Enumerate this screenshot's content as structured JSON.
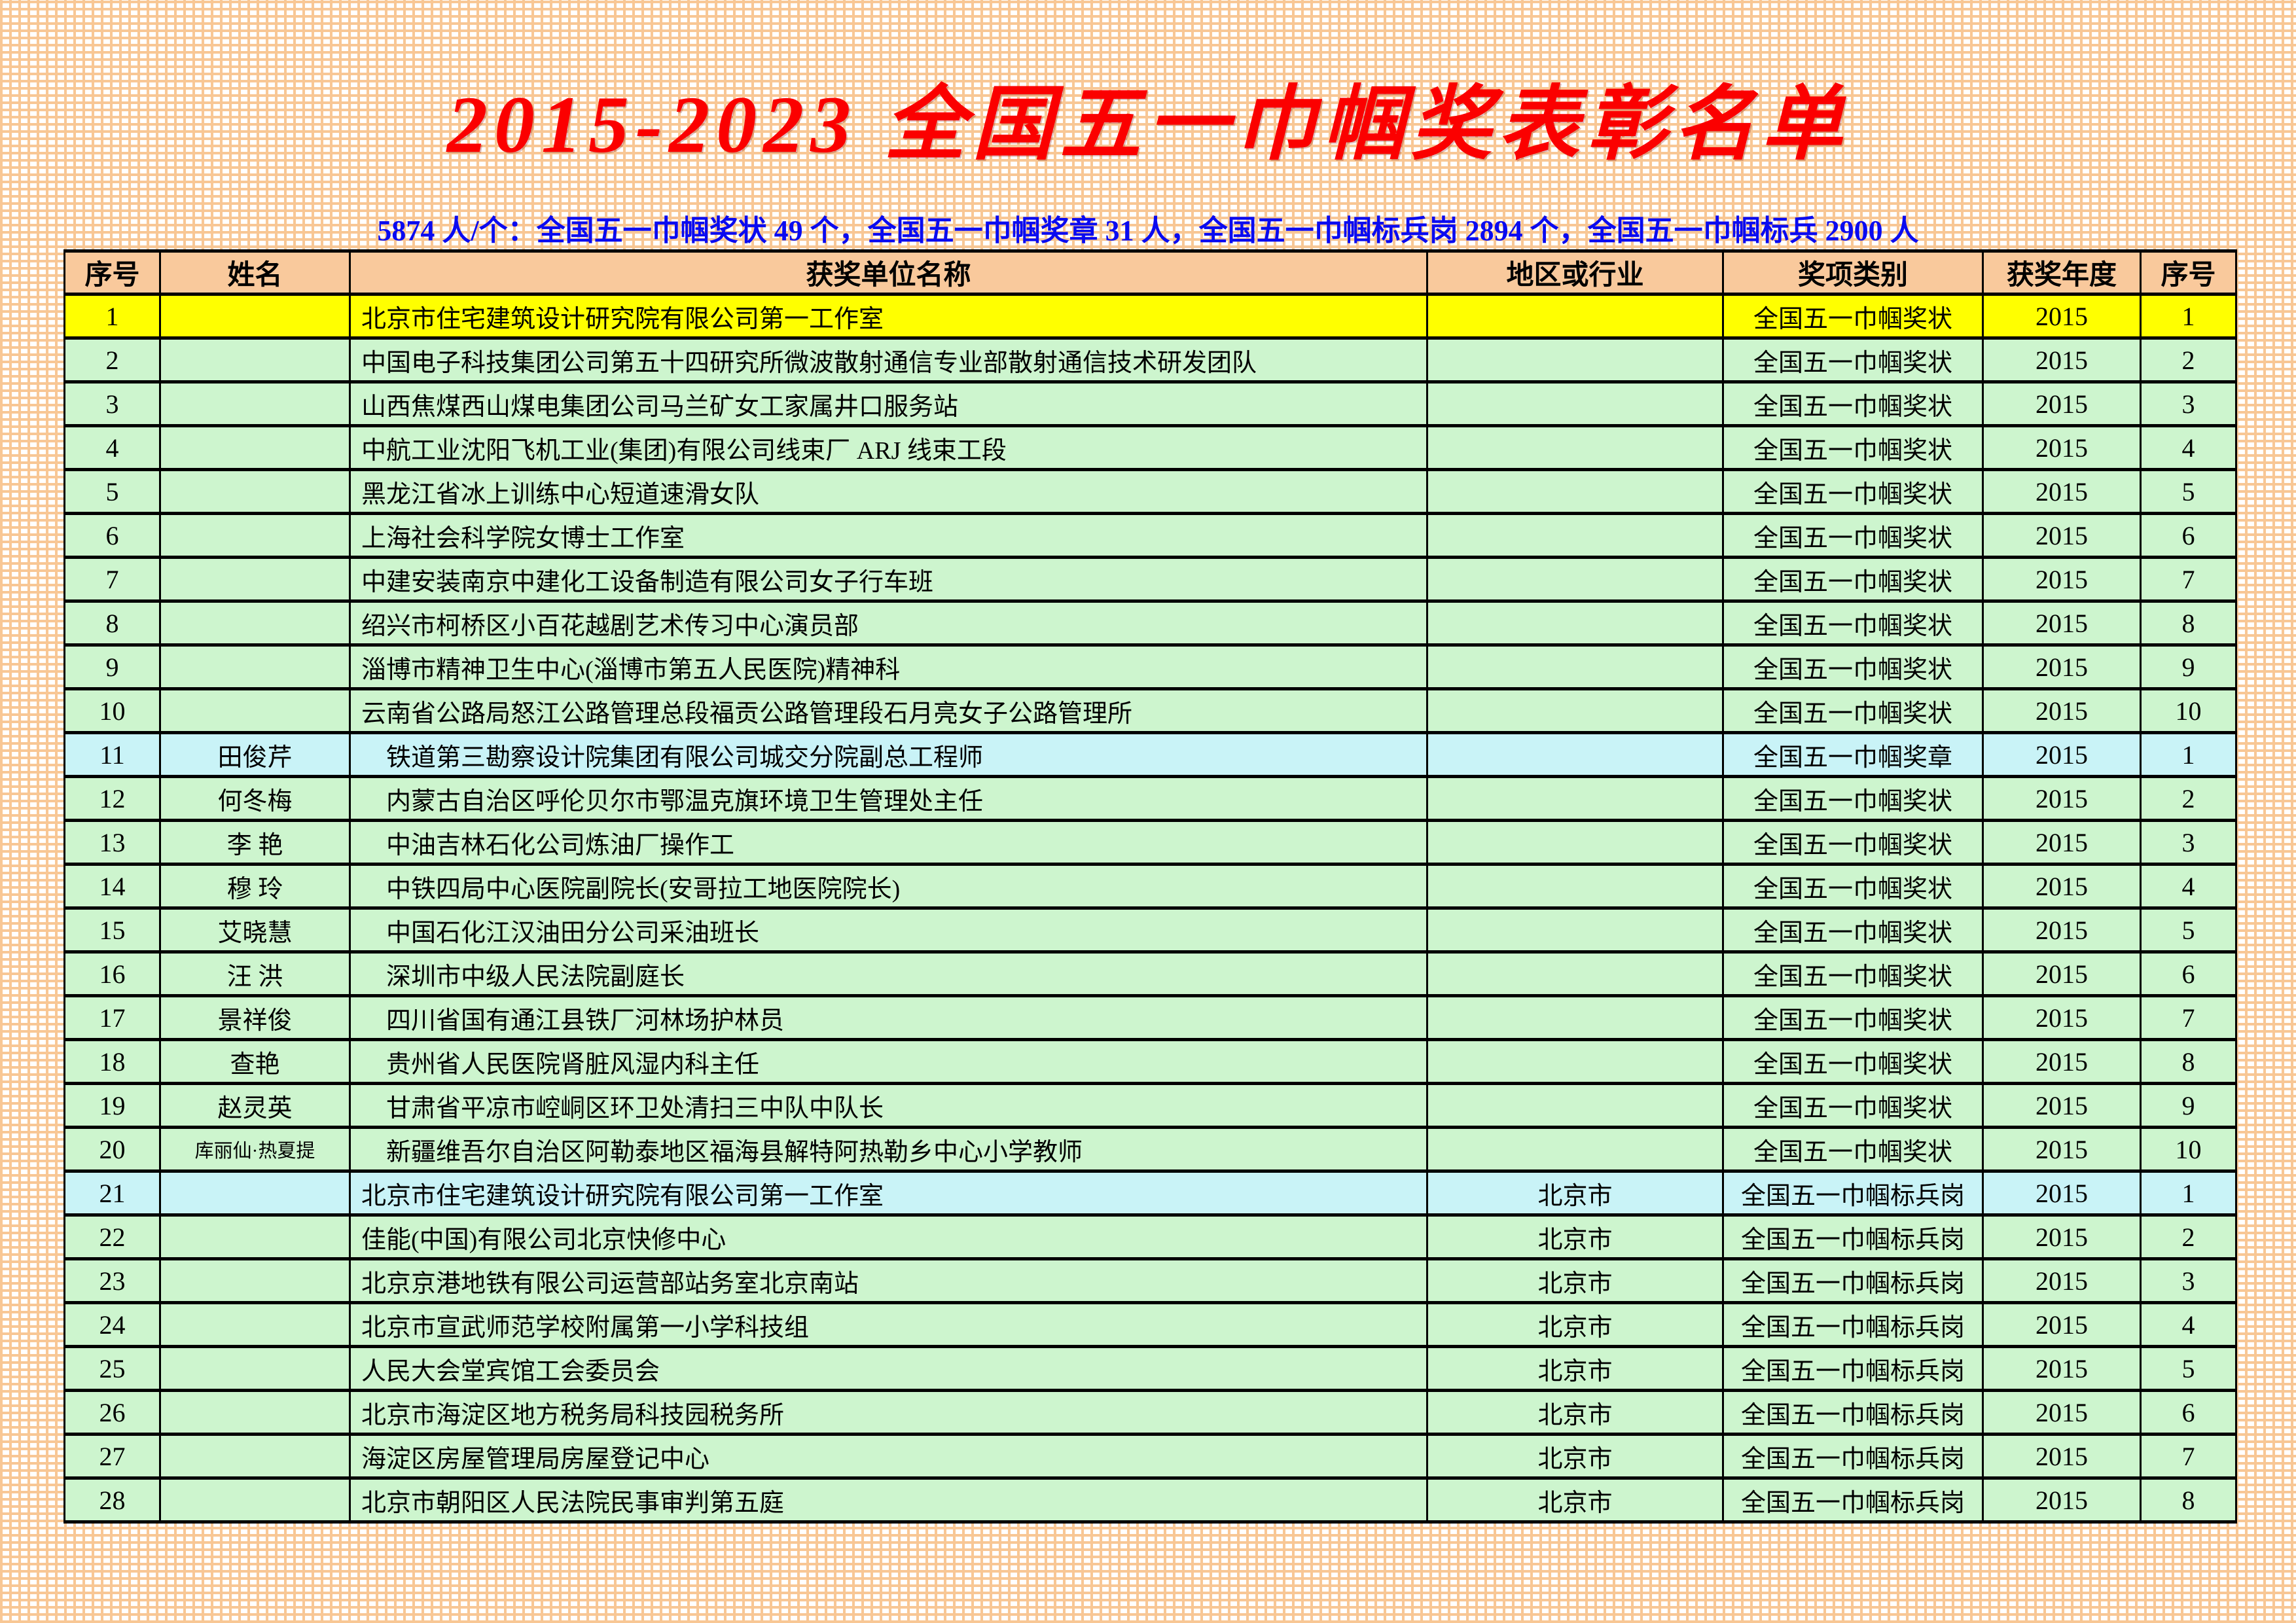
{
  "title": "2015-2023 全国五一巾帼奖表彰名单",
  "subtitle": "5874 人/个：全国五一巾帼奖状 49 个，全国五一巾帼奖章 31 人，全国五一巾帼标兵岗 2894 个，全国五一巾帼标兵 2900 人",
  "colors": {
    "title_red": "#fb0000",
    "subtitle_blue": "#0a0af0",
    "header_peach": "#f9c99c",
    "row_green": "#cdf5ce",
    "row_yellow": "#ffff00",
    "row_blue": "#c9f3f7",
    "grid_orange": "#f8c795",
    "border_black": "#000000"
  },
  "table": {
    "columns": [
      "序号",
      "姓名",
      "获奖单位名称",
      "地区或行业",
      "奖项类别",
      "获奖年度",
      "序号"
    ],
    "rows": [
      {
        "no": "1",
        "name": "",
        "unit": "北京市住宅建筑设计研究院有限公司第一工作室",
        "region": "",
        "category": "全国五一巾帼奖状",
        "year": "2015",
        "no2": "1",
        "highlight": "yellow"
      },
      {
        "no": "2",
        "name": "",
        "unit": "中国电子科技集团公司第五十四研究所微波散射通信专业部散射通信技术研发团队",
        "region": "",
        "category": "全国五一巾帼奖状",
        "year": "2015",
        "no2": "2",
        "highlight": "green"
      },
      {
        "no": "3",
        "name": "",
        "unit": "山西焦煤西山煤电集团公司马兰矿女工家属井口服务站",
        "region": "",
        "category": "全国五一巾帼奖状",
        "year": "2015",
        "no2": "3",
        "highlight": "green"
      },
      {
        "no": "4",
        "name": "",
        "unit": "中航工业沈阳飞机工业(集团)有限公司线束厂 ARJ 线束工段",
        "region": "",
        "category": "全国五一巾帼奖状",
        "year": "2015",
        "no2": "4",
        "highlight": "green"
      },
      {
        "no": "5",
        "name": "",
        "unit": "黑龙江省冰上训练中心短道速滑女队",
        "region": "",
        "category": "全国五一巾帼奖状",
        "year": "2015",
        "no2": "5",
        "highlight": "green"
      },
      {
        "no": "6",
        "name": "",
        "unit": "上海社会科学院女博士工作室",
        "region": "",
        "category": "全国五一巾帼奖状",
        "year": "2015",
        "no2": "6",
        "highlight": "green"
      },
      {
        "no": "7",
        "name": "",
        "unit": "中建安装南京中建化工设备制造有限公司女子行车班",
        "region": "",
        "category": "全国五一巾帼奖状",
        "year": "2015",
        "no2": "7",
        "highlight": "green"
      },
      {
        "no": "8",
        "name": "",
        "unit": "绍兴市柯桥区小百花越剧艺术传习中心演员部",
        "region": "",
        "category": "全国五一巾帼奖状",
        "year": "2015",
        "no2": "8",
        "highlight": "green"
      },
      {
        "no": "9",
        "name": "",
        "unit": "淄博市精神卫生中心(淄博市第五人民医院)精神科",
        "region": "",
        "category": "全国五一巾帼奖状",
        "year": "2015",
        "no2": "9",
        "highlight": "green"
      },
      {
        "no": "10",
        "name": "",
        "unit": "云南省公路局怒江公路管理总段福贡公路管理段石月亮女子公路管理所",
        "region": "",
        "category": "全国五一巾帼奖状",
        "year": "2015",
        "no2": "10",
        "highlight": "green"
      },
      {
        "no": "11",
        "name": "田俊芹",
        "unit": "　铁道第三勘察设计院集团有限公司城交分院副总工程师",
        "region": "",
        "category": "全国五一巾帼奖章",
        "year": "2015",
        "no2": "1",
        "highlight": "blue"
      },
      {
        "no": "12",
        "name": "何冬梅",
        "unit": "　内蒙古自治区呼伦贝尔市鄂温克旗环境卫生管理处主任",
        "region": "",
        "category": "全国五一巾帼奖状",
        "year": "2015",
        "no2": "2",
        "highlight": "green"
      },
      {
        "no": "13",
        "name": "李 艳",
        "unit": "　中油吉林石化公司炼油厂操作工",
        "region": "",
        "category": "全国五一巾帼奖状",
        "year": "2015",
        "no2": "3",
        "highlight": "green"
      },
      {
        "no": "14",
        "name": "穆 玲",
        "unit": "　中铁四局中心医院副院长(安哥拉工地医院院长)",
        "region": "",
        "category": "全国五一巾帼奖状",
        "year": "2015",
        "no2": "4",
        "highlight": "green"
      },
      {
        "no": "15",
        "name": "艾晓慧",
        "unit": "　中国石化江汉油田分公司采油班长",
        "region": "",
        "category": "全国五一巾帼奖状",
        "year": "2015",
        "no2": "5",
        "highlight": "green"
      },
      {
        "no": "16",
        "name": "汪 洪",
        "unit": "　深圳市中级人民法院副庭长",
        "region": "",
        "category": "全国五一巾帼奖状",
        "year": "2015",
        "no2": "6",
        "highlight": "green"
      },
      {
        "no": "17",
        "name": "景祥俊",
        "unit": "　四川省国有通江县铁厂河林场护林员",
        "region": "",
        "category": "全国五一巾帼奖状",
        "year": "2015",
        "no2": "7",
        "highlight": "green"
      },
      {
        "no": "18",
        "name": "查艳",
        "unit": "　贵州省人民医院肾脏风湿内科主任",
        "region": "",
        "category": "全国五一巾帼奖状",
        "year": "2015",
        "no2": "8",
        "highlight": "green"
      },
      {
        "no": "19",
        "name": "赵灵英",
        "unit": "　甘肃省平凉市崆峒区环卫处清扫三中队中队长",
        "region": "",
        "category": "全国五一巾帼奖状",
        "year": "2015",
        "no2": "9",
        "highlight": "green"
      },
      {
        "no": "20",
        "name": "库丽仙·热夏提",
        "unit": "　新疆维吾尔自治区阿勒泰地区福海县解特阿热勒乡中心小学教师",
        "region": "",
        "category": "全国五一巾帼奖状",
        "year": "2015",
        "no2": "10",
        "highlight": "green"
      },
      {
        "no": "21",
        "name": "",
        "unit": "北京市住宅建筑设计研究院有限公司第一工作室",
        "region": "北京市",
        "category": "全国五一巾帼标兵岗",
        "year": "2015",
        "no2": "1",
        "highlight": "blue"
      },
      {
        "no": "22",
        "name": "",
        "unit": "佳能(中国)有限公司北京快修中心",
        "region": "北京市",
        "category": "全国五一巾帼标兵岗",
        "year": "2015",
        "no2": "2",
        "highlight": "green"
      },
      {
        "no": "23",
        "name": "",
        "unit": "北京京港地铁有限公司运营部站务室北京南站",
        "region": "北京市",
        "category": "全国五一巾帼标兵岗",
        "year": "2015",
        "no2": "3",
        "highlight": "green"
      },
      {
        "no": "24",
        "name": "",
        "unit": "北京市宣武师范学校附属第一小学科技组",
        "region": "北京市",
        "category": "全国五一巾帼标兵岗",
        "year": "2015",
        "no2": "4",
        "highlight": "green"
      },
      {
        "no": "25",
        "name": "",
        "unit": "人民大会堂宾馆工会委员会",
        "region": "北京市",
        "category": "全国五一巾帼标兵岗",
        "year": "2015",
        "no2": "5",
        "highlight": "green"
      },
      {
        "no": "26",
        "name": "",
        "unit": "北京市海淀区地方税务局科技园税务所",
        "region": "北京市",
        "category": "全国五一巾帼标兵岗",
        "year": "2015",
        "no2": "6",
        "highlight": "green"
      },
      {
        "no": "27",
        "name": "",
        "unit": "海淀区房屋管理局房屋登记中心",
        "region": "北京市",
        "category": "全国五一巾帼标兵岗",
        "year": "2015",
        "no2": "7",
        "highlight": "green"
      },
      {
        "no": "28",
        "name": "",
        "unit": "北京市朝阳区人民法院民事审判第五庭",
        "region": "北京市",
        "category": "全国五一巾帼标兵岗",
        "year": "2015",
        "no2": "8",
        "highlight": "green"
      }
    ]
  }
}
